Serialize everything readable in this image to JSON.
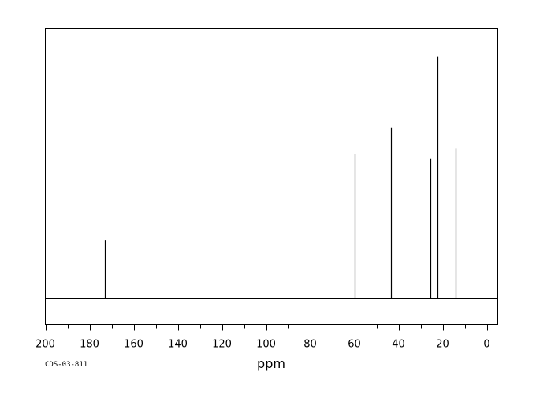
{
  "chart_data": {
    "type": "line",
    "title": "",
    "xlabel": "ppm",
    "ylabel": "",
    "xlim": [
      200,
      -5
    ],
    "x_reversed": true,
    "ylim": [
      -0.12,
      1.0
    ],
    "grid": false,
    "x_ticks": [
      200,
      180,
      160,
      140,
      120,
      100,
      80,
      60,
      40,
      20,
      0
    ],
    "x_tick_labels": [
      "200",
      "180",
      "160",
      "140",
      "120",
      "100",
      "80",
      "60",
      "40",
      "20",
      "0"
    ],
    "peaks": [
      {
        "ppm": 173.0,
        "intensity": 0.22
      },
      {
        "ppm": 60.0,
        "intensity": 0.55
      },
      {
        "ppm": 43.5,
        "intensity": 0.65
      },
      {
        "ppm": 25.5,
        "intensity": 0.53
      },
      {
        "ppm": 22.3,
        "intensity": 0.92
      },
      {
        "ppm": 14.0,
        "intensity": 0.57
      }
    ]
  },
  "footer": {
    "code": "CDS-03-811"
  }
}
